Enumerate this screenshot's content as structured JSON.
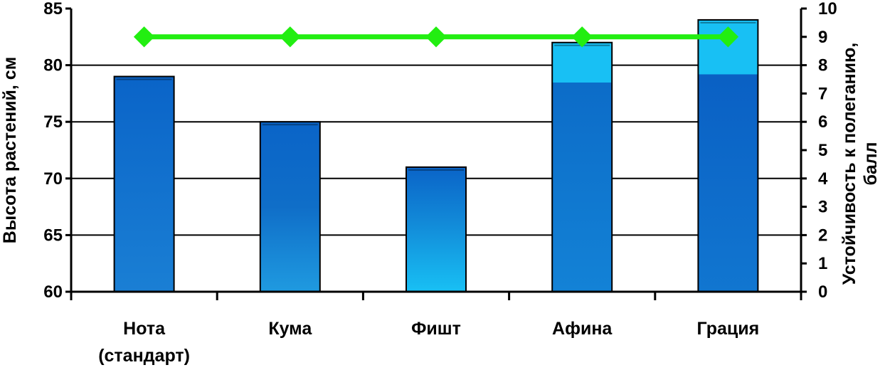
{
  "chart_data": {
    "type": "bar",
    "categories": [
      [
        "Нота",
        "(стандарт)"
      ],
      [
        "Кума"
      ],
      [
        "Фишт"
      ],
      [
        "Афина"
      ],
      [
        "Грация"
      ]
    ],
    "series": [
      {
        "axis": "left",
        "kind": "bar",
        "values": [
          79,
          75,
          71,
          82,
          84
        ]
      },
      {
        "axis": "right",
        "kind": "line",
        "marker": "diamond",
        "values": [
          9,
          9,
          9,
          9,
          9
        ]
      }
    ],
    "y_left": {
      "label": "Высота растений, см",
      "range": [
        60,
        85
      ],
      "ticks": [
        "60",
        "65",
        "70",
        "75",
        "80",
        "85"
      ]
    },
    "y_right": {
      "label_lines": [
        "Устойчивость к полеганию,",
        "балл"
      ],
      "range": [
        0,
        10
      ],
      "ticks": [
        "0",
        "1",
        "2",
        "3",
        "4",
        "5",
        "6",
        "7",
        "8",
        "9",
        "10"
      ]
    },
    "grid": true,
    "colors": {
      "bar_dark": "#0a64c8",
      "bar_light": "#18c0f4",
      "line": "#22ee11",
      "axis": "#000000",
      "grid": "#000000"
    }
  }
}
